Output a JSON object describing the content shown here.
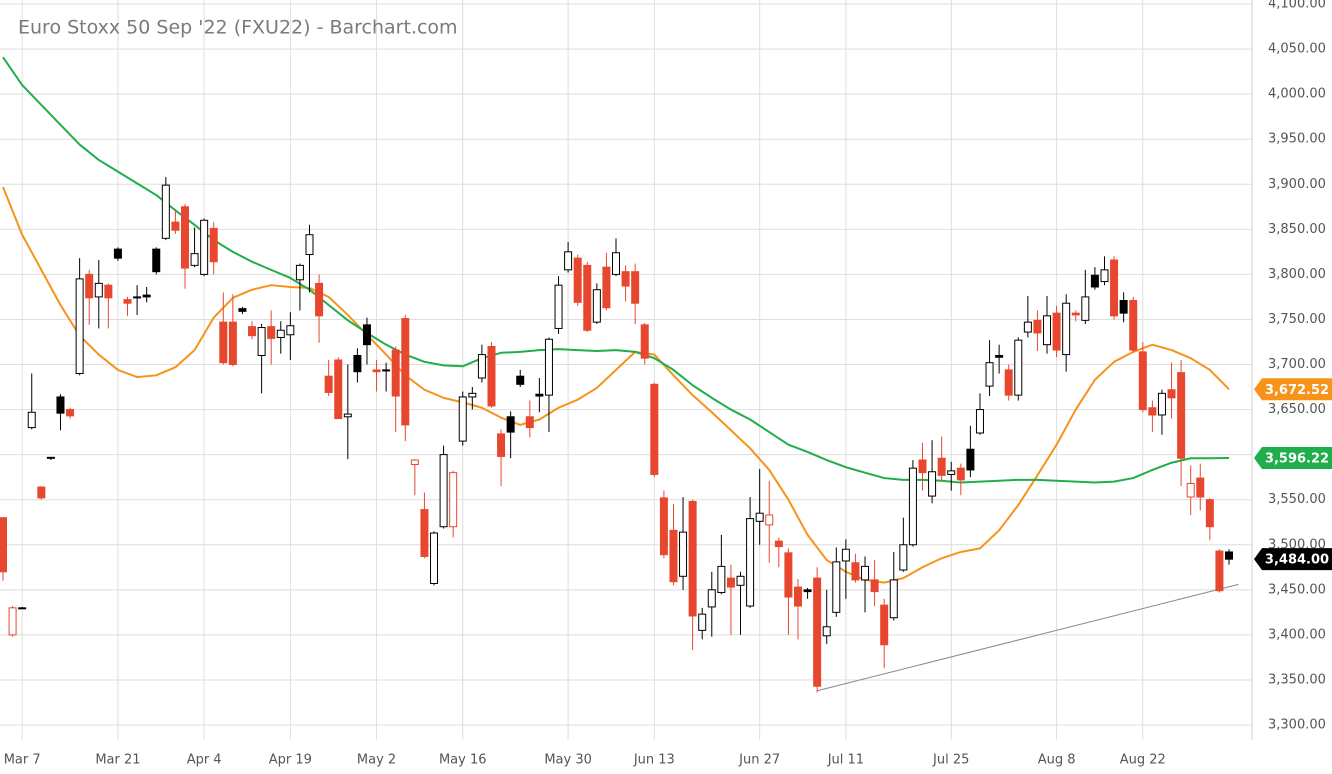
{
  "chart_data": {
    "type": "candlestick",
    "title": "Euro Stoxx 50 Sep '22 (FXU22) - Barchart.com",
    "categories": [
      null,
      null,
      "Mar 7",
      null,
      null,
      null,
      null,
      null,
      null,
      null,
      null,
      null,
      "Mar 21",
      null,
      null,
      null,
      null,
      null,
      null,
      null,
      null,
      "Apr 4",
      null,
      null,
      null,
      null,
      null,
      null,
      null,
      null,
      "Apr 19",
      null,
      null,
      null,
      null,
      null,
      null,
      null,
      null,
      "May 2",
      null,
      null,
      null,
      null,
      null,
      null,
      null,
      null,
      "May 16",
      null,
      null,
      null,
      null,
      null,
      null,
      null,
      null,
      null,
      null,
      "May 30",
      null,
      null,
      null,
      null,
      null,
      null,
      null,
      null,
      "Jun 13",
      null,
      null,
      null,
      null,
      null,
      null,
      null,
      null,
      null,
      null,
      "Jun 27",
      null,
      null,
      null,
      null,
      null,
      null,
      null,
      null,
      "Jul 11",
      null,
      null,
      null,
      null,
      null,
      null,
      null,
      null,
      null,
      null,
      "Jul 25",
      null,
      null,
      null,
      null,
      null,
      null,
      null,
      null,
      null,
      null,
      "Aug 8",
      null,
      null,
      null,
      null,
      null,
      null,
      null,
      null,
      "Aug 22",
      null,
      null,
      null,
      null,
      null,
      null,
      null,
      null,
      null
    ],
    "open": [
      3530,
      3400,
      3430,
      3630,
      3564,
      3597,
      3664,
      3650,
      3690,
      3800,
      3775,
      3788,
      3828,
      3772,
      3775,
      3777,
      3828,
      3840,
      3858,
      3875,
      3810,
      3800,
      3851,
      3747,
      3747,
      3762,
      3742,
      3710,
      3742,
      3730,
      3733,
      3794,
      3822,
      3790,
      3687,
      3705,
      3642,
      3710,
      3744,
      3694,
      3694,
      3716,
      3751,
      3589,
      3539,
      3457,
      3520,
      3520,
      3615,
      3664,
      3685,
      3720,
      3623,
      3642,
      3687,
      3642,
      3667,
      3666,
      3740,
      3805,
      3818,
      3810,
      3747,
      3808,
      3800,
      3803,
      3803,
      3744,
      3678,
      3552,
      3516,
      3465,
      3548,
      3405,
      3431,
      3447,
      3463,
      3455,
      3432,
      3526,
      3522,
      3504,
      3491,
      3453,
      3450,
      3463,
      3399,
      3425,
      3482,
      3480,
      3461,
      3461,
      3433,
      3419,
      3472,
      3500,
      3594,
      3554,
      3596,
      3578,
      3585,
      3606,
      3624,
      3676,
      3710,
      3694,
      3666,
      3736,
      3749,
      3722,
      3757,
      3711,
      3757,
      3749,
      3799,
      3792,
      3816,
      3771,
      3771,
      3714,
      3652,
      3644,
      3672,
      3691,
      3553,
      3574,
      3550,
      3493,
      3492
    ],
    "high": [
      3530,
      3432,
      3431,
      3690,
      3565,
      3597,
      3667,
      3652,
      3818,
      3805,
      3816,
      3790,
      3830,
      3775,
      3788,
      3786,
      3830,
      3908,
      3872,
      3878,
      3852,
      3862,
      3858,
      3780,
      3778,
      3764,
      3748,
      3745,
      3760,
      3748,
      3758,
      3812,
      3855,
      3800,
      3705,
      3708,
      3700,
      3718,
      3752,
      3705,
      3702,
      3720,
      3755,
      3595,
      3558,
      3515,
      3610,
      3582,
      3670,
      3675,
      3722,
      3725,
      3628,
      3648,
      3694,
      3660,
      3685,
      3730,
      3798,
      3836,
      3822,
      3814,
      3790,
      3824,
      3840,
      3810,
      3812,
      3746,
      3680,
      3560,
      3545,
      3553,
      3550,
      3430,
      3470,
      3511,
      3478,
      3470,
      3553,
      3584,
      3571,
      3508,
      3496,
      3462,
      3452,
      3475,
      3450,
      3497,
      3506,
      3490,
      3487,
      3483,
      3440,
      3492,
      3530,
      3594,
      3613,
      3616,
      3620,
      3592,
      3590,
      3632,
      3668,
      3727,
      3722,
      3700,
      3730,
      3776,
      3760,
      3776,
      3765,
      3778,
      3760,
      3805,
      3808,
      3820,
      3820,
      3780,
      3775,
      3725,
      3660,
      3672,
      3702,
      3705,
      3588,
      3590,
      3552,
      3495,
      3495
    ],
    "low": [
      3460,
      3398,
      3429,
      3628,
      3550,
      3594,
      3627,
      3640,
      3688,
      3744,
      3740,
      3740,
      3815,
      3754,
      3755,
      3769,
      3800,
      3838,
      3845,
      3784,
      3808,
      3798,
      3800,
      3700,
      3698,
      3756,
      3728,
      3668,
      3700,
      3712,
      3705,
      3760,
      3780,
      3724,
      3665,
      3640,
      3595,
      3680,
      3700,
      3670,
      3670,
      3625,
      3615,
      3555,
      3485,
      3455,
      3518,
      3508,
      3610,
      3650,
      3680,
      3652,
      3565,
      3596,
      3675,
      3619,
      3647,
      3625,
      3734,
      3802,
      3765,
      3736,
      3745,
      3760,
      3798,
      3770,
      3745,
      3700,
      3575,
      3485,
      3455,
      3450,
      3383,
      3395,
      3398,
      3445,
      3400,
      3400,
      3430,
      3500,
      3480,
      3475,
      3400,
      3395,
      3440,
      3336,
      3390,
      3420,
      3440,
      3458,
      3425,
      3432,
      3363,
      3416,
      3470,
      3498,
      3560,
      3546,
      3570,
      3560,
      3555,
      3575,
      3622,
      3665,
      3690,
      3660,
      3660,
      3730,
      3715,
      3712,
      3708,
      3692,
      3748,
      3745,
      3783,
      3788,
      3750,
      3747,
      3713,
      3647,
      3625,
      3622,
      3640,
      3565,
      3533,
      3538,
      3505,
      3447,
      3478
    ],
    "close": [
      3470,
      3430,
      3430,
      3647,
      3552,
      3596,
      3646,
      3643,
      3795,
      3774,
      3790,
      3774,
      3818,
      3768,
      3774,
      3775,
      3803,
      3899,
      3849,
      3807,
      3823,
      3860,
      3814,
      3702,
      3700,
      3759,
      3732,
      3741,
      3729,
      3738,
      3743,
      3810,
      3844,
      3754,
      3669,
      3640,
      3645,
      3692,
      3722,
      3692,
      3693,
      3665,
      3633,
      3594,
      3487,
      3513,
      3600,
      3580,
      3664,
      3668,
      3711,
      3654,
      3598,
      3625,
      3678,
      3630,
      3665,
      3728,
      3788,
      3825,
      3769,
      3738,
      3783,
      3763,
      3824,
      3787,
      3768,
      3707,
      3578,
      3489,
      3459,
      3514,
      3421,
      3423,
      3450,
      3476,
      3453,
      3465,
      3529,
      3535,
      3533,
      3498,
      3442,
      3432,
      3448,
      3343,
      3409,
      3481,
      3495,
      3461,
      3476,
      3448,
      3389,
      3461,
      3500,
      3585,
      3580,
      3581,
      3577,
      3582,
      3572,
      3583,
      3650,
      3702,
      3708,
      3666,
      3727,
      3747,
      3735,
      3754,
      3716,
      3768,
      3755,
      3775,
      3786,
      3805,
      3754,
      3757,
      3716,
      3650,
      3644,
      3668,
      3663,
      3596,
      3568,
      3553,
      3520,
      3449,
      3484
    ],
    "up_color": "#000000",
    "down_color": "#e8472f",
    "series": [
      {
        "type": "line",
        "color": "#f7931a",
        "x": [
          0,
          2,
          4,
          6,
          8,
          10,
          12,
          14,
          16,
          18,
          20,
          22,
          24,
          26,
          28,
          30,
          32,
          34,
          36,
          38,
          40,
          42,
          44,
          46,
          48,
          50,
          52,
          54,
          56,
          58,
          60,
          62,
          64,
          66,
          68,
          70,
          72,
          74,
          76,
          78,
          80,
          82,
          84,
          86,
          88,
          90,
          92,
          94,
          96,
          98,
          100,
          102,
          104,
          106,
          108,
          110,
          112,
          114,
          116,
          118,
          120,
          122,
          124,
          126,
          128
        ],
        "values": [
          3897,
          3844,
          3805,
          3766,
          3732,
          3711,
          3694,
          3686,
          3688,
          3697,
          3716,
          3752,
          3774,
          3783,
          3788,
          3786,
          3785,
          3775,
          3755,
          3733,
          3711,
          3688,
          3672,
          3663,
          3658,
          3652,
          3641,
          3633,
          3639,
          3652,
          3661,
          3674,
          3694,
          3714,
          3711,
          3688,
          3666,
          3647,
          3627,
          3607,
          3583,
          3550,
          3511,
          3483,
          3470,
          3461,
          3458,
          3463,
          3475,
          3485,
          3492,
          3496,
          3516,
          3544,
          3577,
          3611,
          3650,
          3683,
          3703,
          3714,
          3722,
          3716,
          3707,
          3694,
          3672.52
        ]
      },
      {
        "type": "line",
        "color": "#1fae4b",
        "x": [
          0,
          2,
          4,
          6,
          8,
          10,
          12,
          14,
          16,
          18,
          20,
          22,
          24,
          26,
          28,
          30,
          32,
          34,
          36,
          38,
          40,
          42,
          44,
          46,
          48,
          50,
          52,
          54,
          56,
          58,
          60,
          62,
          64,
          66,
          68,
          70,
          72,
          74,
          76,
          78,
          80,
          82,
          84,
          86,
          88,
          90,
          92,
          94,
          96,
          98,
          100,
          102,
          104,
          106,
          108,
          110,
          112,
          114,
          116,
          118,
          120,
          122,
          124,
          126,
          128
        ],
        "values": [
          4041,
          4010,
          3988,
          3966,
          3944,
          3927,
          3914,
          3901,
          3888,
          3871,
          3855,
          3838,
          3825,
          3814,
          3805,
          3796,
          3783,
          3766,
          3749,
          3735,
          3722,
          3711,
          3703,
          3699,
          3698,
          3707,
          3713,
          3714,
          3716,
          3717,
          3716,
          3715,
          3716,
          3714,
          3707,
          3694,
          3677,
          3663,
          3650,
          3639,
          3625,
          3611,
          3603,
          3594,
          3586,
          3580,
          3574,
          3572,
          3572,
          3571,
          3569,
          3570,
          3571,
          3572,
          3572,
          3571,
          3570,
          3569,
          3570,
          3574,
          3583,
          3591,
          3596,
          3596,
          3596.22
        ]
      }
    ],
    "trendline": {
      "color": "#888888",
      "x": [
        85,
        129
      ],
      "values": [
        3338,
        3456
      ]
    },
    "price_labels": [
      {
        "value": 3672.52,
        "label": "3,672.52",
        "color": "#f7931a"
      },
      {
        "value": 3596.22,
        "label": "3,596.22",
        "color": "#1fae4b"
      },
      {
        "value": 3484,
        "label": "3,484.00",
        "color": "#000000"
      }
    ],
    "ylim": [
      3300,
      4100
    ],
    "yticks": [
      {
        "value": 3300,
        "label": "3,300.00"
      },
      {
        "value": 3350,
        "label": "3,350.00"
      },
      {
        "value": 3400,
        "label": "3,400.00"
      },
      {
        "value": 3450,
        "label": "3,450.00"
      },
      {
        "value": 3500,
        "label": "3,500.00"
      },
      {
        "value": 3550,
        "label": "3,550.00"
      },
      {
        "value": 3600,
        "label": "3,600.00"
      },
      {
        "value": 3650,
        "label": "3,650.00"
      },
      {
        "value": 3700,
        "label": "3,700.00"
      },
      {
        "value": 3750,
        "label": "3,750.00"
      },
      {
        "value": 3800,
        "label": "3,800.00"
      },
      {
        "value": 3850,
        "label": "3,850.00"
      },
      {
        "value": 3900,
        "label": "3,900.00"
      },
      {
        "value": 3950,
        "label": "3,950.00"
      },
      {
        "value": 4000,
        "label": "4,000.00"
      },
      {
        "value": 4050,
        "label": "4,050.00"
      },
      {
        "value": 4100,
        "label": "4,100.00"
      }
    ],
    "grid": true
  }
}
